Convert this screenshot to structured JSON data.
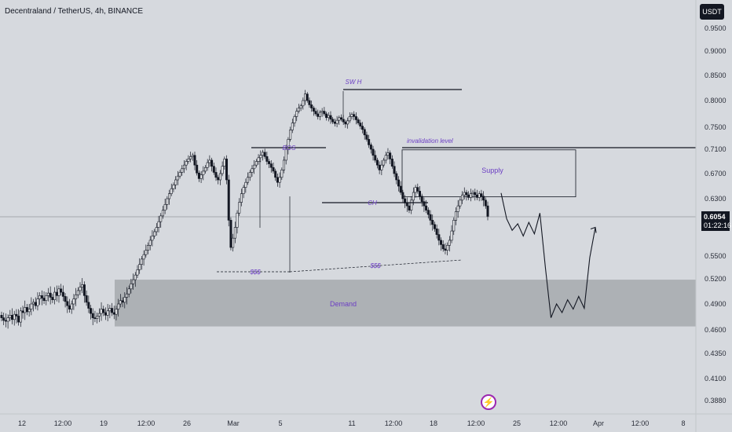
{
  "header": {
    "title": "Decentraland / TetherUS, 4h, BINANCE",
    "currency": "USDT"
  },
  "last_price": {
    "value": "0.6054",
    "countdown": "01:22:16"
  },
  "badges": {
    "boost_icon": "lightning-bolt-icon"
  },
  "colors": {
    "background": "#d6d9de",
    "zone": "#a6a9ae",
    "candle": "#131722",
    "annotation": "#6c3fc4",
    "price_tag": "#131722"
  },
  "chart_data": {
    "type": "candlestick",
    "symbol": "Decentraland / TetherUS",
    "interval": "4h",
    "exchange": "BINANCE",
    "x_ticks": [
      "12",
      "12:00",
      "19",
      "12:00",
      "26",
      "Mar",
      "5",
      "11",
      "12:00",
      "18",
      "12:00",
      "25",
      "12:00",
      "Apr",
      "12:00",
      "8"
    ],
    "y_ticks": [
      "0.9500",
      "0.9000",
      "0.8500",
      "0.8000",
      "0.7500",
      "0.7100",
      "0.6700",
      "0.6300",
      "0.5500",
      "0.5200",
      "0.4900",
      "0.4600",
      "0.4350",
      "0.4100",
      "0.3880"
    ],
    "close_series": [
      0.474,
      0.471,
      0.47,
      0.474,
      0.477,
      0.472,
      0.478,
      0.476,
      0.469,
      0.482,
      0.48,
      0.486,
      0.481,
      0.484,
      0.49,
      0.492,
      0.488,
      0.496,
      0.5,
      0.497,
      0.494,
      0.5,
      0.503,
      0.498,
      0.495,
      0.504,
      0.5,
      0.508,
      0.504,
      0.499,
      0.493,
      0.488,
      0.484,
      0.49,
      0.496,
      0.501,
      0.506,
      0.51,
      0.513,
      0.5,
      0.492,
      0.485,
      0.479,
      0.474,
      0.473,
      0.476,
      0.479,
      0.484,
      0.48,
      0.477,
      0.482,
      0.485,
      0.48,
      0.478,
      0.484,
      0.49,
      0.494,
      0.492,
      0.498,
      0.502,
      0.508,
      0.514,
      0.519,
      0.525,
      0.532,
      0.539,
      0.546,
      0.552,
      0.558,
      0.565,
      0.572,
      0.578,
      0.584,
      0.59,
      0.598,
      0.606,
      0.614,
      0.622,
      0.63,
      0.638,
      0.646,
      0.652,
      0.66,
      0.666,
      0.672,
      0.678,
      0.684,
      0.69,
      0.694,
      0.698,
      0.7,
      0.684,
      0.671,
      0.662,
      0.668,
      0.674,
      0.68,
      0.688,
      0.692,
      0.682,
      0.672,
      0.664,
      0.66,
      0.67,
      0.682,
      0.694,
      0.66,
      0.6,
      0.562,
      0.575,
      0.59,
      0.61,
      0.625,
      0.638,
      0.648,
      0.656,
      0.664,
      0.672,
      0.678,
      0.684,
      0.69,
      0.696,
      0.7,
      0.705,
      0.698,
      0.69,
      0.686,
      0.68,
      0.674,
      0.664,
      0.656,
      0.664,
      0.676,
      0.692,
      0.71,
      0.728,
      0.745,
      0.758,
      0.77,
      0.78,
      0.786,
      0.79,
      0.8,
      0.813,
      0.8,
      0.792,
      0.786,
      0.78,
      0.775,
      0.77,
      0.778,
      0.78,
      0.775,
      0.768,
      0.772,
      0.765,
      0.76,
      0.757,
      0.763,
      0.768,
      0.765,
      0.76,
      0.756,
      0.762,
      0.77,
      0.774,
      0.77,
      0.764,
      0.758,
      0.752,
      0.746,
      0.736,
      0.728,
      0.718,
      0.71,
      0.7,
      0.692,
      0.684,
      0.676,
      0.684,
      0.692,
      0.7,
      0.704,
      0.694,
      0.682,
      0.67,
      0.66,
      0.65,
      0.64,
      0.63,
      0.624,
      0.62,
      0.614,
      0.628,
      0.64,
      0.648,
      0.642,
      0.634,
      0.626,
      0.62,
      0.614,
      0.608,
      0.6,
      0.594,
      0.588,
      0.58,
      0.572,
      0.566,
      0.56,
      0.558,
      0.565,
      0.572,
      0.585,
      0.6,
      0.612,
      0.62,
      0.628,
      0.636,
      0.64,
      0.636,
      0.632,
      0.638,
      0.64,
      0.636,
      0.632,
      0.638,
      0.634,
      0.628,
      0.62,
      0.6054
    ],
    "projection": [
      0.639,
      0.602,
      0.586,
      0.595,
      0.578,
      0.597,
      0.581,
      0.61,
      0.534,
      0.474,
      0.49,
      0.48,
      0.495,
      0.484,
      0.499,
      0.485,
      0.548,
      0.59
    ],
    "zones": [
      {
        "label": "Supply",
        "top": 0.709,
        "bottom": 0.633
      },
      {
        "label": "Demand",
        "top": 0.519,
        "bottom": 0.464
      }
    ],
    "levels": [
      {
        "label": "SW H",
        "price": 0.825
      },
      {
        "label": "invalidation level",
        "price": 0.713
      },
      {
        "label": "BOS",
        "price": 0.713
      },
      {
        "label": "CH",
        "price": 0.623
      }
    ],
    "liquidity_lines": [
      {
        "label": "$$$",
        "price": 0.537
      },
      {
        "label": "$$$",
        "price": 0.537
      }
    ]
  }
}
